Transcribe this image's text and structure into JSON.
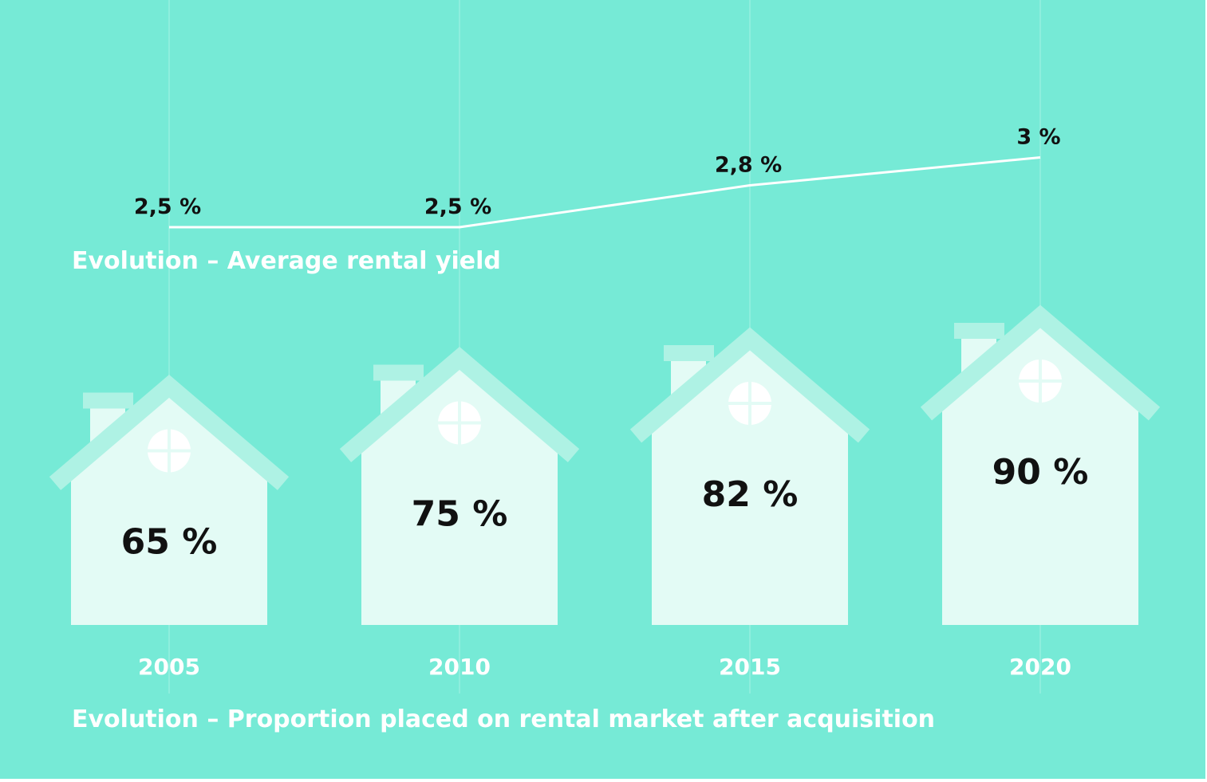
{
  "colors": {
    "background": "#76ead6",
    "house_body": "#e3fbf5",
    "house_roof": "#aef2e4",
    "line": "#ffffff",
    "gridline": "#8eeedd",
    "window": "#ffffff",
    "value_text": "#111111",
    "caption_text": "#ffffff"
  },
  "captions": {
    "yield": "Evolution – Average rental yield",
    "proportion": "Evolution – Proportion placed on rental market after acquisition"
  },
  "chart_data": [
    {
      "type": "line",
      "title": "Evolution – Average rental yield",
      "x": [
        "2005",
        "2010",
        "2015",
        "2020"
      ],
      "values": [
        2.5,
        2.5,
        2.8,
        3
      ],
      "labels": [
        "2,5 %",
        "2,5 %",
        "2,8 %",
        "3 %"
      ],
      "unit": "%"
    },
    {
      "type": "bar",
      "title": "Evolution – Proportion placed on rental market after acquisition",
      "categories": [
        "2005",
        "2010",
        "2015",
        "2020"
      ],
      "values": [
        65,
        75,
        82,
        90
      ],
      "labels": [
        "65 %",
        "75 %",
        "82 %",
        "90 %"
      ],
      "unit": "%",
      "mark_style": "house pictogram, height proportional to value"
    }
  ]
}
